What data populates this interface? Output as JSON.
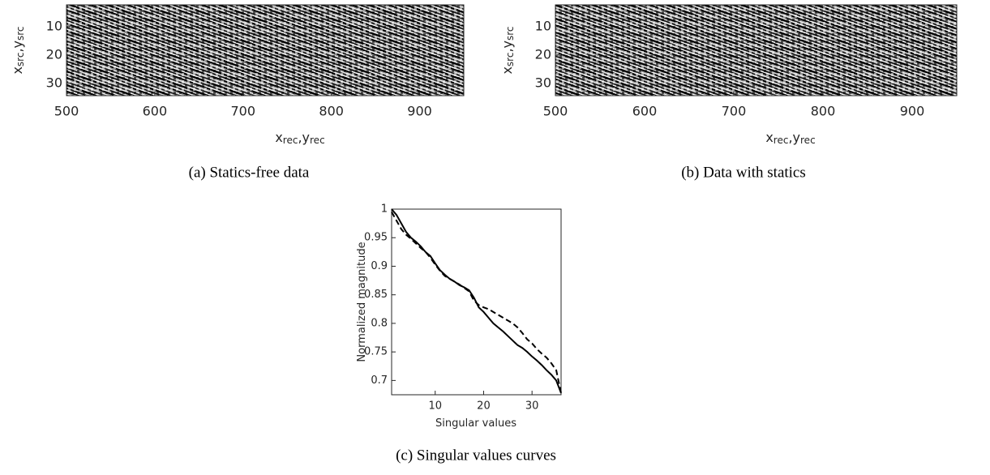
{
  "chart_data": [
    {
      "type": "image",
      "caption": "(a) Statics-free data",
      "xlabel": [
        {
          "text": "x"
        },
        {
          "sub": "rec"
        },
        {
          "text": ","
        },
        {
          "text": "y"
        },
        {
          "sub": "rec"
        }
      ],
      "ylabel": [
        {
          "text": "x"
        },
        {
          "sub": "src"
        },
        {
          "text": ","
        },
        {
          "text": "y"
        },
        {
          "sub": "src"
        }
      ],
      "xlim": [
        500,
        950
      ],
      "xticks": [
        500,
        600,
        700,
        800,
        900
      ],
      "ylim": [
        2.3,
        34.3
      ],
      "yticks": [
        10,
        20,
        30
      ],
      "y_reversed": true
    },
    {
      "type": "image",
      "caption": "(b) Data with statics",
      "xlabel": [
        {
          "text": "x"
        },
        {
          "sub": "rec"
        },
        {
          "text": ","
        },
        {
          "text": "y"
        },
        {
          "sub": "rec"
        }
      ],
      "ylabel": [
        {
          "text": "x"
        },
        {
          "sub": "src"
        },
        {
          "text": ","
        },
        {
          "text": "y"
        },
        {
          "sub": "src"
        }
      ],
      "xlim": [
        500,
        950
      ],
      "xticks": [
        500,
        600,
        700,
        800,
        900
      ],
      "ylim": [
        2.3,
        34.3
      ],
      "yticks": [
        10,
        20,
        30
      ],
      "y_reversed": true
    },
    {
      "type": "line",
      "caption": "(c) Singular values curves",
      "xlabel": [
        {
          "text": "Singular values"
        }
      ],
      "ylabel": [
        {
          "text": "Normalized magnitude"
        }
      ],
      "xlim": [
        1,
        36
      ],
      "xticks": [
        10,
        20,
        30
      ],
      "ylim": [
        0.675,
        1
      ],
      "yticks": [
        0.7,
        0.75,
        0.8,
        0.85,
        0.9,
        0.95,
        1
      ],
      "x": [
        1,
        2,
        3,
        4,
        5,
        6,
        7,
        8,
        9,
        10,
        11,
        12,
        13,
        14,
        15,
        16,
        17,
        18,
        19,
        20,
        21,
        22,
        23,
        24,
        25,
        26,
        27,
        28,
        29,
        30,
        31,
        32,
        33,
        34,
        35,
        36
      ],
      "series": [
        {
          "color": "#000000",
          "dashed": false,
          "values": [
            1.0,
            0.99,
            0.975,
            0.96,
            0.95,
            0.943,
            0.935,
            0.925,
            0.918,
            0.905,
            0.893,
            0.885,
            0.878,
            0.873,
            0.867,
            0.863,
            0.858,
            0.845,
            0.828,
            0.82,
            0.81,
            0.8,
            0.793,
            0.786,
            0.778,
            0.77,
            0.762,
            0.757,
            0.75,
            0.742,
            0.735,
            0.727,
            0.718,
            0.71,
            0.7,
            0.678
          ]
        },
        {
          "color": "#000000",
          "dashed": true,
          "values": [
            0.995,
            0.98,
            0.965,
            0.955,
            0.948,
            0.94,
            0.932,
            0.925,
            0.915,
            0.903,
            0.892,
            0.883,
            0.878,
            0.873,
            0.868,
            0.862,
            0.856,
            0.84,
            0.832,
            0.828,
            0.825,
            0.82,
            0.815,
            0.81,
            0.805,
            0.8,
            0.793,
            0.783,
            0.772,
            0.765,
            0.755,
            0.747,
            0.74,
            0.73,
            0.718,
            0.678
          ]
        }
      ]
    }
  ]
}
